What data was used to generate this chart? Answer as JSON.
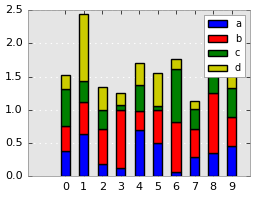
{
  "categories": [
    "0",
    "1",
    "2",
    "3",
    "4",
    "5",
    "6",
    "7",
    "8",
    "9"
  ],
  "a_vals": [
    0.38,
    0.64,
    0.18,
    0.12,
    0.7,
    0.5,
    0.06,
    0.29,
    0.35,
    0.46
  ],
  "b_vals": [
    0.38,
    0.48,
    0.54,
    0.88,
    0.28,
    0.5,
    0.76,
    0.42,
    0.9,
    0.44
  ],
  "c_vals": [
    0.55,
    0.32,
    0.28,
    0.08,
    0.4,
    0.06,
    0.8,
    0.3,
    0.42,
    0.43
  ],
  "d_vals": [
    0.22,
    1.0,
    0.35,
    0.18,
    0.32,
    0.5,
    0.15,
    0.13,
    0.4,
    0.44
  ],
  "colors": [
    "#0000ff",
    "#ff0000",
    "#008000",
    "#cccc00"
  ],
  "labels": [
    "a",
    "b",
    "c",
    "d"
  ],
  "ylim": [
    0,
    2.5
  ],
  "yticks": [
    0.0,
    0.5,
    1.0,
    1.5,
    2.0,
    2.5
  ],
  "legend_loc": "upper right",
  "figsize": [
    2.55,
    1.97
  ],
  "dpi": 100,
  "bg_color": "#e5e5e5",
  "grid_color": "#ffffff",
  "bar_width": 0.5
}
